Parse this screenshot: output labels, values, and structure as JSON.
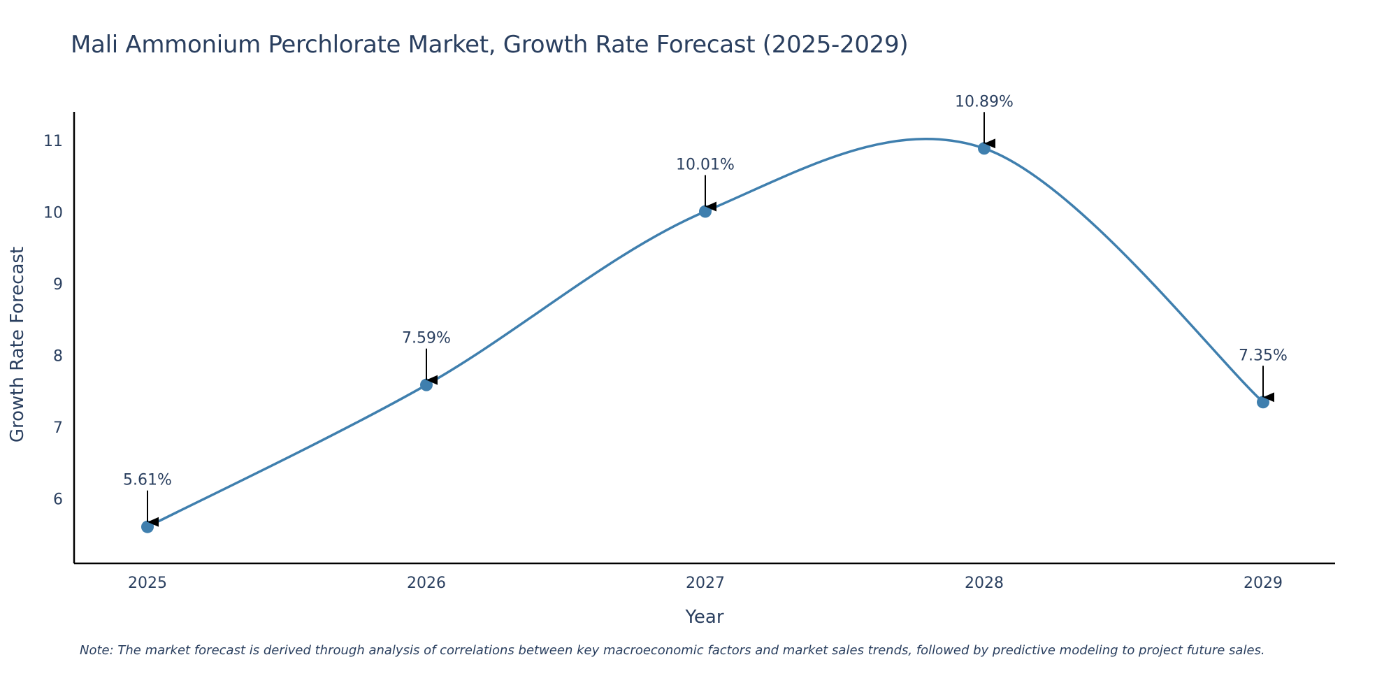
{
  "chart_data": {
    "type": "line",
    "title": "Mali Ammonium Perchlorate Market, Growth Rate Forecast (2025-2029)",
    "xlabel": "Year",
    "ylabel": "Growth Rate Forecast",
    "categories": [
      "2025",
      "2026",
      "2027",
      "2028",
      "2029"
    ],
    "values": [
      5.61,
      7.59,
      10.01,
      10.89,
      7.35
    ],
    "data_labels": [
      "5.61%",
      "7.59%",
      "10.01%",
      "10.89%",
      "7.35%"
    ],
    "yticks": [
      6,
      7,
      8,
      9,
      10,
      11
    ],
    "ytick_labels": [
      "6",
      "7",
      "8",
      "9",
      "10",
      "11"
    ],
    "ylim": [
      5.1,
      11.4
    ],
    "grid": false,
    "legend": "none",
    "line_shape": "spline",
    "note": "Note: The market forecast is derived through analysis of correlations between key macroeconomic factors and market sales trends, followed by predictive modeling to project future sales."
  },
  "colors": {
    "line": "#3f7fae",
    "marker": "#3f7fae",
    "axis": "#000000",
    "text": "#2a3f5f",
    "arrow": "#000000"
  }
}
